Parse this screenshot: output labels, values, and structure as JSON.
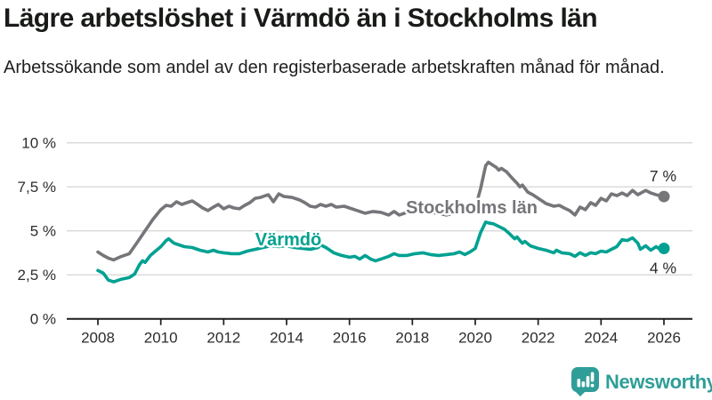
{
  "chart_data": {
    "type": "line",
    "title": "Lägre arbetslöshet i Värmdö än i Stockholms län",
    "subtitle": "Arbetssökande som andel av den registerbaserade arbetskraften månad för månad.",
    "unit": "%",
    "grid": "horizontal",
    "legend_position": "inline-labels",
    "xlim": [
      2007.0,
      2026.9
    ],
    "ylim": [
      0,
      10
    ],
    "x_ticks": [
      {
        "v": 2008,
        "label": "2008"
      },
      {
        "v": 2010,
        "label": "2010"
      },
      {
        "v": 2012,
        "label": "2012"
      },
      {
        "v": 2014,
        "label": "2014"
      },
      {
        "v": 2016,
        "label": "2016"
      },
      {
        "v": 2018,
        "label": "2018"
      },
      {
        "v": 2020,
        "label": "2020"
      },
      {
        "v": 2022,
        "label": "2022"
      },
      {
        "v": 2024,
        "label": "2024"
      },
      {
        "v": 2026,
        "label": "2026"
      }
    ],
    "y_ticks": [
      {
        "v": 0,
        "label": "0 %"
      },
      {
        "v": 2.5,
        "label": "2,5 %"
      },
      {
        "v": 5,
        "label": "5 %"
      },
      {
        "v": 7.5,
        "label": "7,5 %"
      },
      {
        "v": 10,
        "label": "10 %"
      }
    ],
    "series": [
      {
        "name": "Stockholms län",
        "color": "#75757a",
        "end_label": "7 %",
        "points": [
          [
            2008.0,
            3.8
          ],
          [
            2008.17,
            3.6
          ],
          [
            2008.33,
            3.45
          ],
          [
            2008.5,
            3.35
          ],
          [
            2008.75,
            3.55
          ],
          [
            2009.0,
            3.7
          ],
          [
            2009.25,
            4.35
          ],
          [
            2009.5,
            5.0
          ],
          [
            2009.75,
            5.65
          ],
          [
            2010.0,
            6.2
          ],
          [
            2010.17,
            6.45
          ],
          [
            2010.33,
            6.4
          ],
          [
            2010.5,
            6.65
          ],
          [
            2010.67,
            6.5
          ],
          [
            2010.83,
            6.6
          ],
          [
            2011.0,
            6.7
          ],
          [
            2011.17,
            6.5
          ],
          [
            2011.33,
            6.3
          ],
          [
            2011.5,
            6.15
          ],
          [
            2011.67,
            6.35
          ],
          [
            2011.83,
            6.5
          ],
          [
            2012.0,
            6.25
          ],
          [
            2012.17,
            6.4
          ],
          [
            2012.33,
            6.3
          ],
          [
            2012.5,
            6.25
          ],
          [
            2012.67,
            6.45
          ],
          [
            2012.83,
            6.6
          ],
          [
            2013.0,
            6.85
          ],
          [
            2013.17,
            6.9
          ],
          [
            2013.33,
            7.0
          ],
          [
            2013.42,
            7.05
          ],
          [
            2013.58,
            6.65
          ],
          [
            2013.75,
            7.1
          ],
          [
            2013.92,
            6.95
          ],
          [
            2014.17,
            6.9
          ],
          [
            2014.42,
            6.75
          ],
          [
            2014.58,
            6.6
          ],
          [
            2014.75,
            6.4
          ],
          [
            2014.92,
            6.35
          ],
          [
            2015.08,
            6.5
          ],
          [
            2015.25,
            6.4
          ],
          [
            2015.42,
            6.5
          ],
          [
            2015.58,
            6.35
          ],
          [
            2015.83,
            6.4
          ],
          [
            2016.0,
            6.3
          ],
          [
            2016.25,
            6.15
          ],
          [
            2016.5,
            6.0
          ],
          [
            2016.75,
            6.1
          ],
          [
            2017.0,
            6.05
          ],
          [
            2017.25,
            5.9
          ],
          [
            2017.42,
            6.1
          ],
          [
            2017.58,
            5.9
          ],
          [
            2017.83,
            6.05
          ],
          [
            2018.08,
            6.1
          ],
          [
            2018.33,
            6.0
          ],
          [
            2018.58,
            6.05
          ],
          [
            2018.83,
            6.0
          ],
          [
            2019.08,
            5.9
          ],
          [
            2019.33,
            6.0
          ],
          [
            2019.58,
            6.05
          ],
          [
            2019.83,
            6.2
          ],
          [
            2020.0,
            6.3
          ],
          [
            2020.17,
            7.4
          ],
          [
            2020.33,
            8.7
          ],
          [
            2020.42,
            8.9
          ],
          [
            2020.5,
            8.8
          ],
          [
            2020.67,
            8.6
          ],
          [
            2020.75,
            8.45
          ],
          [
            2020.83,
            8.55
          ],
          [
            2021.0,
            8.35
          ],
          [
            2021.17,
            8.0
          ],
          [
            2021.33,
            7.7
          ],
          [
            2021.42,
            7.5
          ],
          [
            2021.5,
            7.6
          ],
          [
            2021.67,
            7.2
          ],
          [
            2021.83,
            7.05
          ],
          [
            2022.0,
            6.85
          ],
          [
            2022.25,
            6.55
          ],
          [
            2022.5,
            6.4
          ],
          [
            2022.67,
            6.45
          ],
          [
            2022.83,
            6.3
          ],
          [
            2023.0,
            6.15
          ],
          [
            2023.17,
            5.9
          ],
          [
            2023.33,
            6.35
          ],
          [
            2023.5,
            6.2
          ],
          [
            2023.67,
            6.6
          ],
          [
            2023.83,
            6.45
          ],
          [
            2024.0,
            6.85
          ],
          [
            2024.17,
            6.7
          ],
          [
            2024.33,
            7.1
          ],
          [
            2024.5,
            7.0
          ],
          [
            2024.67,
            7.15
          ],
          [
            2024.83,
            7.0
          ],
          [
            2025.0,
            7.3
          ],
          [
            2025.17,
            7.05
          ],
          [
            2025.42,
            7.3
          ],
          [
            2025.58,
            7.15
          ],
          [
            2025.75,
            7.05
          ],
          [
            2026.0,
            6.95
          ]
        ]
      },
      {
        "name": "Värmdö",
        "color": "#00a192",
        "end_label": "4 %",
        "points": [
          [
            2008.0,
            2.75
          ],
          [
            2008.17,
            2.6
          ],
          [
            2008.33,
            2.2
          ],
          [
            2008.5,
            2.1
          ],
          [
            2008.75,
            2.25
          ],
          [
            2009.0,
            2.35
          ],
          [
            2009.17,
            2.55
          ],
          [
            2009.33,
            3.1
          ],
          [
            2009.42,
            3.3
          ],
          [
            2009.5,
            3.2
          ],
          [
            2009.67,
            3.6
          ],
          [
            2009.83,
            3.85
          ],
          [
            2010.0,
            4.1
          ],
          [
            2010.17,
            4.45
          ],
          [
            2010.25,
            4.55
          ],
          [
            2010.42,
            4.3
          ],
          [
            2010.58,
            4.2
          ],
          [
            2010.75,
            4.1
          ],
          [
            2011.0,
            4.05
          ],
          [
            2011.25,
            3.9
          ],
          [
            2011.5,
            3.8
          ],
          [
            2011.67,
            3.9
          ],
          [
            2011.83,
            3.8
          ],
          [
            2012.0,
            3.75
          ],
          [
            2012.25,
            3.7
          ],
          [
            2012.5,
            3.7
          ],
          [
            2012.75,
            3.85
          ],
          [
            2013.0,
            3.95
          ],
          [
            2013.25,
            4.05
          ],
          [
            2013.5,
            4.15
          ],
          [
            2013.75,
            4.1
          ],
          [
            2014.0,
            4.15
          ],
          [
            2014.25,
            4.05
          ],
          [
            2014.5,
            4.0
          ],
          [
            2014.75,
            3.95
          ],
          [
            2015.0,
            4.05
          ],
          [
            2015.08,
            4.2
          ],
          [
            2015.25,
            4.05
          ],
          [
            2015.5,
            3.75
          ],
          [
            2015.75,
            3.6
          ],
          [
            2016.0,
            3.5
          ],
          [
            2016.17,
            3.55
          ],
          [
            2016.33,
            3.4
          ],
          [
            2016.5,
            3.6
          ],
          [
            2016.67,
            3.4
          ],
          [
            2016.83,
            3.3
          ],
          [
            2017.0,
            3.4
          ],
          [
            2017.25,
            3.55
          ],
          [
            2017.42,
            3.7
          ],
          [
            2017.58,
            3.6
          ],
          [
            2017.83,
            3.6
          ],
          [
            2018.08,
            3.7
          ],
          [
            2018.33,
            3.75
          ],
          [
            2018.58,
            3.65
          ],
          [
            2018.83,
            3.6
          ],
          [
            2019.08,
            3.65
          ],
          [
            2019.33,
            3.7
          ],
          [
            2019.5,
            3.8
          ],
          [
            2019.67,
            3.65
          ],
          [
            2019.83,
            3.8
          ],
          [
            2020.0,
            4.0
          ],
          [
            2020.17,
            4.9
          ],
          [
            2020.33,
            5.5
          ],
          [
            2020.42,
            5.45
          ],
          [
            2020.58,
            5.4
          ],
          [
            2020.75,
            5.25
          ],
          [
            2020.92,
            5.1
          ],
          [
            2021.08,
            4.85
          ],
          [
            2021.25,
            4.55
          ],
          [
            2021.33,
            4.65
          ],
          [
            2021.42,
            4.45
          ],
          [
            2021.5,
            4.3
          ],
          [
            2021.58,
            4.4
          ],
          [
            2021.75,
            4.15
          ],
          [
            2022.0,
            4.0
          ],
          [
            2022.25,
            3.9
          ],
          [
            2022.5,
            3.75
          ],
          [
            2022.58,
            3.9
          ],
          [
            2022.75,
            3.75
          ],
          [
            2023.0,
            3.7
          ],
          [
            2023.17,
            3.55
          ],
          [
            2023.33,
            3.75
          ],
          [
            2023.5,
            3.6
          ],
          [
            2023.67,
            3.75
          ],
          [
            2023.83,
            3.7
          ],
          [
            2024.0,
            3.85
          ],
          [
            2024.17,
            3.8
          ],
          [
            2024.33,
            3.95
          ],
          [
            2024.5,
            4.1
          ],
          [
            2024.67,
            4.5
          ],
          [
            2024.83,
            4.45
          ],
          [
            2025.0,
            4.6
          ],
          [
            2025.17,
            4.3
          ],
          [
            2025.25,
            3.95
          ],
          [
            2025.42,
            4.15
          ],
          [
            2025.58,
            3.9
          ],
          [
            2025.75,
            4.1
          ],
          [
            2025.92,
            3.9
          ],
          [
            2026.0,
            4.0
          ]
        ]
      }
    ],
    "colors": {
      "grid": "#d8d8d8",
      "axis": "#1c1c1c",
      "tick_label": "#2d2d2d",
      "value_label": "#2b2b2b"
    }
  },
  "footer": {
    "brand": "Newsworthy",
    "brand_color": "#2f9e98",
    "logo_icon": "bar-chart-speech-bubble-icon"
  }
}
